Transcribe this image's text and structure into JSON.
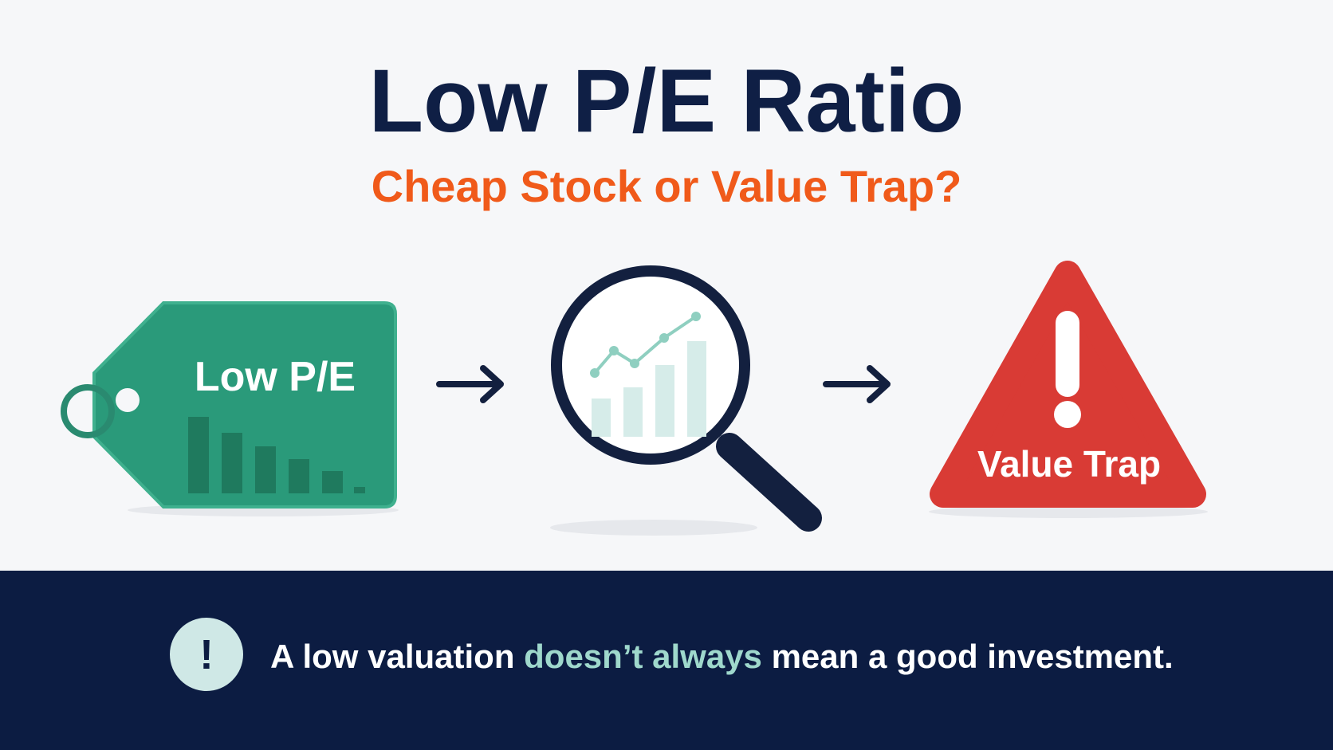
{
  "header": {
    "title": "Low P/E Ratio",
    "subtitle": "Cheap Stock or Value Trap?"
  },
  "steps": [
    {
      "label": "Low P/E"
    },
    {
      "label": "Value Trap"
    }
  ],
  "footer": {
    "icon": "!",
    "text_before": "A low valuation ",
    "highlight": "doesn’t always",
    "text_after": " mean a good investment."
  }
}
